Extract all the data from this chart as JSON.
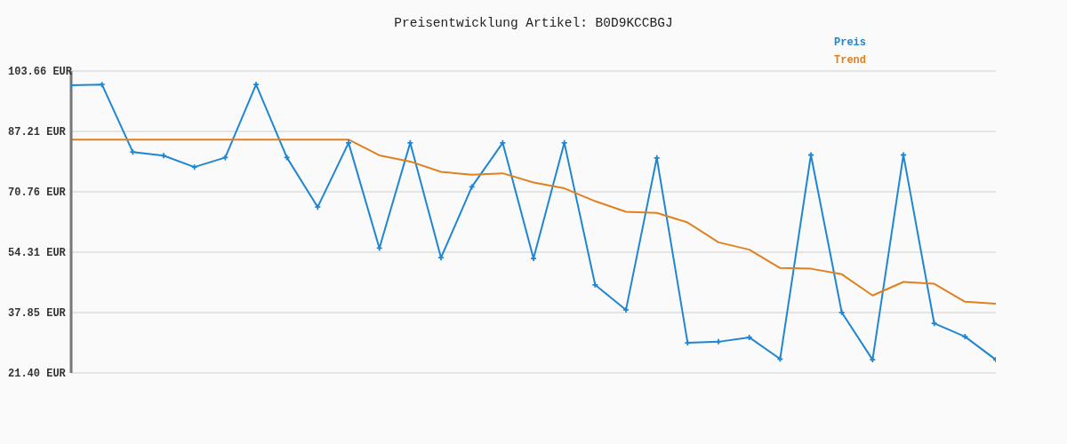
{
  "chart_data": {
    "type": "line",
    "title": "Preisentwicklung Artikel: B0D9KCCBGJ",
    "categories": [
      null,
      null,
      null,
      null,
      null,
      null,
      null,
      null,
      null,
      null,
      null,
      null,
      null,
      null,
      null,
      null,
      null,
      null,
      null,
      null,
      null,
      null,
      null,
      null,
      null,
      null,
      null,
      null,
      null,
      null,
      null
    ],
    "series": [
      {
        "name": "Preis",
        "color": "#1f86d1",
        "marker": "cross",
        "values": [
          99.8,
          100.0,
          81.6,
          80.6,
          77.5,
          80.1,
          100.0,
          80.1,
          66.6,
          84.1,
          55.4,
          84.1,
          52.8,
          72.1,
          84.1,
          52.6,
          84.1,
          45.4,
          38.6,
          80.0,
          29.6,
          29.9,
          31.1,
          25.2,
          80.8,
          37.9,
          25.0,
          80.8,
          34.9,
          31.3,
          25.0
        ]
      },
      {
        "name": "Trend",
        "color": "#e0801f",
        "values": [
          85.0,
          85.0,
          85.0,
          85.0,
          85.0,
          85.0,
          85.0,
          85.0,
          85.0,
          85.0,
          80.7,
          79.0,
          76.2,
          75.4,
          75.8,
          73.3,
          71.7,
          68.2,
          65.3,
          65.0,
          62.4,
          57.0,
          55.0,
          50.0,
          49.8,
          48.3,
          42.5,
          46.2,
          45.7,
          40.8,
          40.3
        ]
      }
    ],
    "ylim": [
      21.4,
      103.66
    ],
    "yticks": [
      {
        "value": 21.4,
        "label": "21.40 EUR"
      },
      {
        "value": 37.85,
        "label": "37.85 EUR"
      },
      {
        "value": 54.31,
        "label": "54.31 EUR"
      },
      {
        "value": 70.76,
        "label": "70.76 EUR"
      },
      {
        "value": 87.21,
        "label": "87.21 EUR"
      },
      {
        "value": 103.66,
        "label": "103.66 EUR"
      }
    ],
    "grid": "y",
    "legend": "top right",
    "tick_labels": "y"
  }
}
